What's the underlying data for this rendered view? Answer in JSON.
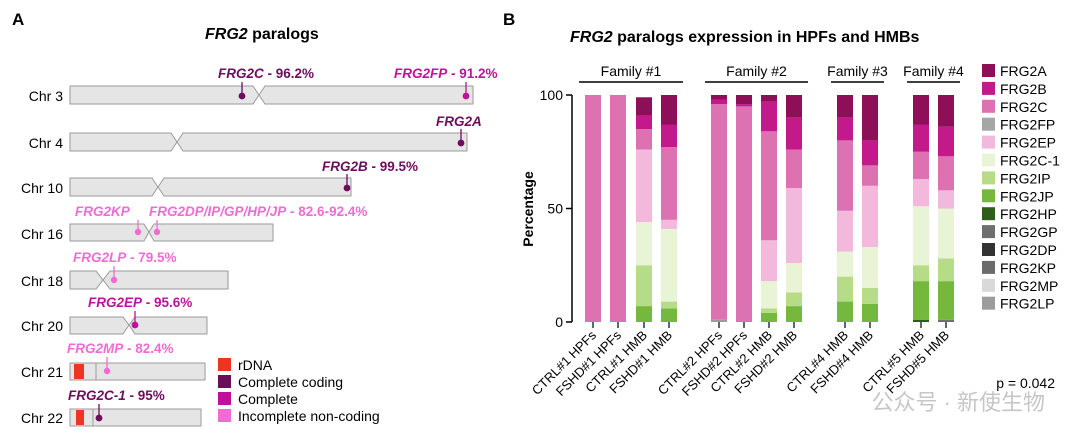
{
  "panel_a": {
    "letter": "A",
    "title_gene": "FRG2",
    "title_rest": " paralogs",
    "chromosomes": [
      {
        "label": "Chr 3",
        "markers": [
          {
            "name": "FRG2C",
            "pct": " - 96.2%",
            "kind": "complete_coding"
          },
          {
            "name": "FRG2FP",
            "pct": " - 91.2%",
            "kind": "complete"
          }
        ]
      },
      {
        "label": "Chr 4",
        "markers": [
          {
            "name": "FRG2A",
            "pct": "",
            "kind": "complete_coding"
          }
        ]
      },
      {
        "label": "Chr 10",
        "markers": [
          {
            "name": "FRG2B",
            "pct": " - 99.5%",
            "kind": "complete_coding"
          }
        ]
      },
      {
        "label": "Chr 16",
        "markers": [
          {
            "name": "FRG2KP",
            "pct": "",
            "kind": "incomplete"
          },
          {
            "name": "FRG2DP/IP/GP/HP/JP",
            "pct": " - 82.6-92.4%",
            "kind": "incomplete"
          }
        ]
      },
      {
        "label": "Chr 18",
        "markers": [
          {
            "name": "FRG2LP",
            "pct": " - 79.5%",
            "kind": "incomplete"
          }
        ]
      },
      {
        "label": "Chr 20",
        "markers": [
          {
            "name": "FRG2EP",
            "pct": " - 95.6%",
            "kind": "complete"
          }
        ]
      },
      {
        "label": "Chr 21",
        "markers": [
          {
            "name": "FRG2MP",
            "pct": " - 82.4%",
            "kind": "incomplete"
          }
        ]
      },
      {
        "label": "Chr 22",
        "markers": [
          {
            "name": "FRG2C-1",
            "pct": " - 95%",
            "kind": "complete_coding"
          }
        ]
      }
    ],
    "legend": [
      {
        "label": "rDNA",
        "color": "#ee3524"
      },
      {
        "label": "Complete coding",
        "color": "#6d0e5c"
      },
      {
        "label": "Complete",
        "color": "#c0119a"
      },
      {
        "label": "Incomplete non-coding",
        "color": "#f26bd3"
      }
    ]
  },
  "panel_b": {
    "letter": "B",
    "p_value": "p = 0.042",
    "watermark": "公众号 · 新使生物"
  },
  "chart_data": {
    "type": "bar",
    "stacked": true,
    "title_gene": "FRG2",
    "title_rest": " paralogs expression in HPFs and HMBs",
    "ylabel": "Percentage",
    "ylim": [
      0,
      100
    ],
    "yticks": [
      0,
      50,
      100
    ],
    "categories": [
      "CTRL#1 HPFs",
      "FSHD#1 HPFs",
      "CTRL#1 HMB",
      "FSHD#1 HMB",
      "CTRL#2 HPFs",
      "FSHD#2 HPFs",
      "CTRL#2 HMB",
      "FSHD#2 HMB",
      "CTRL#4 HMB",
      "FSHD#4 HMB",
      "CTRL#5 HMB",
      "FSHD#5 HMB"
    ],
    "families": [
      {
        "label": "Family #1",
        "from": 0,
        "to": 3
      },
      {
        "label": "Family #2",
        "from": 4,
        "to": 7
      },
      {
        "label": "Family #3",
        "from": 8,
        "to": 9
      },
      {
        "label": "Family #4",
        "from": 10,
        "to": 11
      }
    ],
    "series": [
      {
        "name": "FRG2LP",
        "color": "#9c9c9c",
        "values": [
          0,
          0,
          0,
          0,
          1,
          0,
          0,
          0,
          0,
          0,
          0,
          0
        ]
      },
      {
        "name": "FRG2MP",
        "color": "#d9d9d9",
        "values": [
          0,
          0,
          0,
          0,
          0,
          0,
          0,
          0,
          0,
          0,
          0,
          0
        ]
      },
      {
        "name": "FRG2KP",
        "color": "#6b6b6b",
        "values": [
          0,
          0,
          0,
          0,
          0,
          0,
          0,
          0,
          0,
          0,
          0,
          0
        ]
      },
      {
        "name": "FRG2DP",
        "color": "#333333",
        "values": [
          0,
          0,
          0,
          0,
          0,
          0,
          0,
          0,
          0,
          0,
          0,
          0
        ]
      },
      {
        "name": "FRG2GP",
        "color": "#6e6e6e",
        "values": [
          0,
          0,
          0,
          0,
          0,
          0,
          0,
          0,
          0,
          0,
          0,
          1
        ]
      },
      {
        "name": "FRG2HP",
        "color": "#2d5f1a",
        "values": [
          0,
          0,
          0,
          0,
          0,
          0,
          0,
          0,
          0,
          0,
          1,
          0
        ]
      },
      {
        "name": "FRG2JP",
        "color": "#74b83e",
        "values": [
          0,
          0,
          7,
          6,
          0,
          0,
          4,
          7,
          9,
          8,
          17,
          17
        ]
      },
      {
        "name": "FRG2IP",
        "color": "#b6dc88",
        "values": [
          0,
          0,
          18,
          3,
          0,
          0,
          2,
          6,
          11,
          7,
          7,
          10
        ]
      },
      {
        "name": "FRG2C-1",
        "color": "#e9f3d6",
        "values": [
          0,
          0,
          19,
          32,
          0,
          0,
          12,
          13,
          11,
          18,
          26,
          22
        ]
      },
      {
        "name": "FRG2EP",
        "color": "#f2b9dd",
        "values": [
          0,
          0,
          32,
          4,
          0,
          0,
          18,
          33,
          18,
          27,
          12,
          8
        ]
      },
      {
        "name": "FRG2FP",
        "color": "#a6a6a6",
        "values": [
          0,
          0,
          0,
          0,
          0,
          0,
          0,
          0,
          0,
          0,
          0,
          0
        ]
      },
      {
        "name": "FRG2C",
        "color": "#dc72b1",
        "values": [
          100,
          100,
          9,
          32,
          95,
          95,
          48,
          17,
          31,
          9,
          12,
          15
        ]
      },
      {
        "name": "FRG2B",
        "color": "#c4198a",
        "values": [
          0,
          0,
          6,
          10,
          2,
          1,
          13,
          14,
          10,
          11,
          12,
          13
        ]
      },
      {
        "name": "FRG2A",
        "color": "#8c0f58",
        "values": [
          0,
          0,
          8,
          13,
          2,
          4,
          3,
          10,
          10,
          20,
          13,
          14
        ]
      }
    ],
    "legend_order": [
      "FRG2A",
      "FRG2B",
      "FRG2C",
      "FRG2FP",
      "FRG2EP",
      "FRG2C-1",
      "FRG2IP",
      "FRG2JP",
      "FRG2HP",
      "FRG2GP",
      "FRG2DP",
      "FRG2KP",
      "FRG2MP",
      "FRG2LP"
    ],
    "legend_colors": {
      "FRG2A": "#8c0f58",
      "FRG2B": "#c4198a",
      "FRG2C": "#dc72b1",
      "FRG2FP": "#a6a6a6",
      "FRG2EP": "#f2b9dd",
      "FRG2C-1": "#e9f3d6",
      "FRG2IP": "#b6dc88",
      "FRG2JP": "#74b83e",
      "FRG2HP": "#2d5f1a",
      "FRG2GP": "#6e6e6e",
      "FRG2DP": "#333333",
      "FRG2KP": "#6b6b6b",
      "FRG2MP": "#d9d9d9",
      "FRG2LP": "#9c9c9c"
    }
  }
}
